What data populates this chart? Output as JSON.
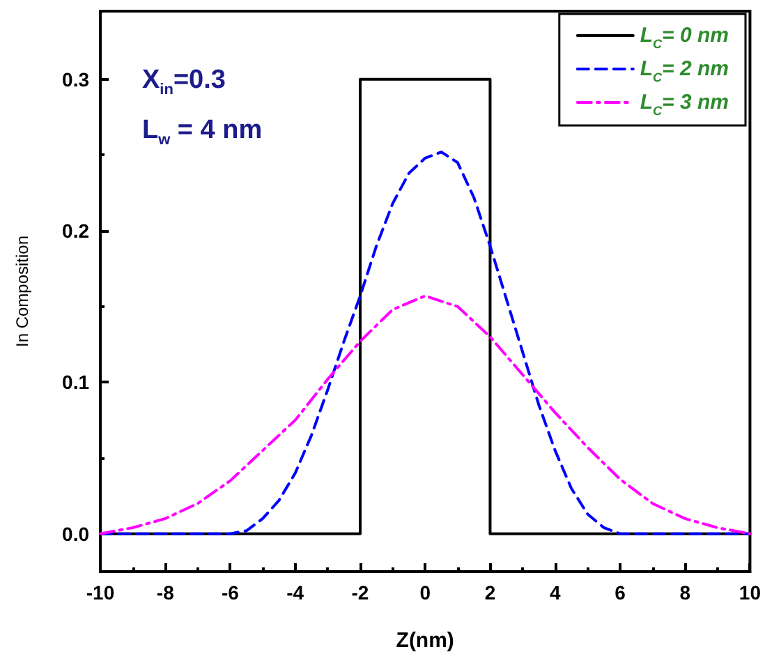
{
  "chart_data": {
    "type": "line",
    "xlabel": "Z(nm)",
    "ylabel": "In Composition",
    "annotations": [
      "X$_{in}$=0.3",
      "L$_{w}$ = 4 nm"
    ],
    "series": [
      {
        "name": "L$_{C}$= 0 nm",
        "color": "#000000",
        "line_style": "solid",
        "x": [
          -10,
          -2,
          -2,
          2,
          2,
          10
        ],
        "values": [
          0,
          0,
          0.3,
          0.3,
          0,
          0
        ]
      },
      {
        "name": "L$_{C}$= 2 nm",
        "color": "#0000ff",
        "line_style": "dashed",
        "x": [
          -10,
          -8,
          -6,
          -5.5,
          -5,
          -4.5,
          -4,
          -3.5,
          -3,
          -2.5,
          -2,
          -1.5,
          -1,
          -0.5,
          0,
          0.5,
          1,
          1.5,
          2,
          2.5,
          3,
          3.5,
          4,
          4.5,
          5,
          5.5,
          6,
          8,
          10
        ],
        "values": [
          0,
          0,
          0,
          0.002,
          0.01,
          0.022,
          0.04,
          0.065,
          0.095,
          0.127,
          0.157,
          0.19,
          0.218,
          0.238,
          0.248,
          0.252,
          0.245,
          0.222,
          0.19,
          0.155,
          0.12,
          0.085,
          0.055,
          0.03,
          0.013,
          0.004,
          0,
          0,
          0
        ]
      },
      {
        "name": "L$_{C}$= 3 nm",
        "color": "#ff00ff",
        "line_style": "dashdot",
        "x": [
          -10,
          -9,
          -8,
          -7,
          -6,
          -5,
          -4,
          -3,
          -2,
          -1,
          0,
          1,
          2,
          3,
          4,
          5,
          6,
          7,
          8,
          9,
          10
        ],
        "values": [
          0,
          0.004,
          0.01,
          0.02,
          0.035,
          0.055,
          0.075,
          0.102,
          0.127,
          0.148,
          0.157,
          0.15,
          0.13,
          0.105,
          0.08,
          0.057,
          0.036,
          0.02,
          0.01,
          0.004,
          0
        ]
      }
    ],
    "xlim": [
      -10,
      10
    ],
    "xticks": [
      -10,
      -8,
      -6,
      -4,
      -2,
      0,
      2,
      4,
      6,
      8,
      10
    ],
    "ylim": [
      -0.025,
      0.345
    ],
    "yticks": [
      {
        "value": 0,
        "label": "0.0"
      },
      {
        "value": 0.1,
        "label": "0.1"
      },
      {
        "value": 0.2,
        "label": "0.2"
      },
      {
        "value": 0.3,
        "label": "0.3"
      }
    ],
    "grid": false,
    "legend": "top right",
    "marker": "none"
  }
}
